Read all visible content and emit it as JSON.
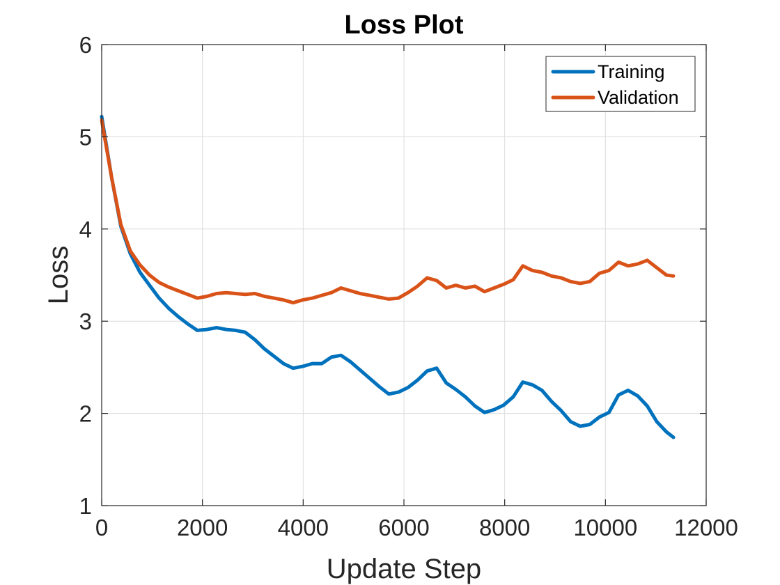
{
  "chart_data": {
    "type": "line",
    "title": "Loss Plot",
    "xlabel": "Update Step",
    "ylabel": "Loss",
    "xlim": [
      0,
      12000
    ],
    "ylim": [
      1,
      6
    ],
    "xticks": [
      0,
      2000,
      4000,
      6000,
      8000,
      10000,
      12000
    ],
    "yticks": [
      1,
      2,
      3,
      4,
      5,
      6
    ],
    "xtick_labels": [
      "0",
      "2000",
      "4000",
      "6000",
      "8000",
      "10000",
      "12000"
    ],
    "ytick_labels": [
      "1",
      "2",
      "3",
      "4",
      "5",
      "6"
    ],
    "grid": true,
    "legend_position": "top-right",
    "x": [
      0,
      200,
      380,
      570,
      760,
      950,
      1140,
      1330,
      1520,
      1710,
      1900,
      2090,
      2280,
      2470,
      2660,
      2850,
      3040,
      3230,
      3420,
      3610,
      3800,
      3990,
      4180,
      4370,
      4560,
      4750,
      4940,
      5130,
      5320,
      5510,
      5700,
      5890,
      6080,
      6270,
      6460,
      6650,
      6840,
      7030,
      7220,
      7410,
      7600,
      7790,
      7980,
      8170,
      8360,
      8550,
      8740,
      8930,
      9120,
      9310,
      9500,
      9690,
      9880,
      10070,
      10260,
      10450,
      10640,
      10830,
      11020,
      11210,
      11350
    ],
    "series": [
      {
        "name": "Training",
        "color": "#0072BD",
        "values": [
          5.22,
          4.55,
          4.03,
          3.73,
          3.53,
          3.39,
          3.25,
          3.14,
          3.05,
          2.97,
          2.9,
          2.91,
          2.93,
          2.91,
          2.9,
          2.88,
          2.8,
          2.7,
          2.62,
          2.54,
          2.49,
          2.51,
          2.54,
          2.54,
          2.61,
          2.63,
          2.56,
          2.47,
          2.38,
          2.29,
          2.21,
          2.23,
          2.28,
          2.36,
          2.46,
          2.49,
          2.33,
          2.26,
          2.18,
          2.08,
          2.01,
          2.04,
          2.09,
          2.18,
          2.34,
          2.31,
          2.25,
          2.13,
          2.03,
          1.91,
          1.86,
          1.88,
          1.96,
          2.01,
          2.2,
          2.25,
          2.19,
          2.08,
          1.91,
          1.8,
          1.74
        ]
      },
      {
        "name": "Validation",
        "color": "#D95319",
        "values": [
          5.18,
          4.55,
          4.05,
          3.76,
          3.61,
          3.5,
          3.42,
          3.37,
          3.33,
          3.29,
          3.25,
          3.27,
          3.3,
          3.31,
          3.3,
          3.29,
          3.3,
          3.27,
          3.25,
          3.23,
          3.2,
          3.23,
          3.25,
          3.28,
          3.31,
          3.36,
          3.33,
          3.3,
          3.28,
          3.26,
          3.24,
          3.25,
          3.31,
          3.38,
          3.47,
          3.44,
          3.36,
          3.39,
          3.36,
          3.38,
          3.32,
          3.36,
          3.4,
          3.45,
          3.6,
          3.55,
          3.53,
          3.49,
          3.47,
          3.43,
          3.41,
          3.43,
          3.52,
          3.55,
          3.64,
          3.6,
          3.62,
          3.66,
          3.58,
          3.5,
          3.49
        ]
      }
    ]
  }
}
